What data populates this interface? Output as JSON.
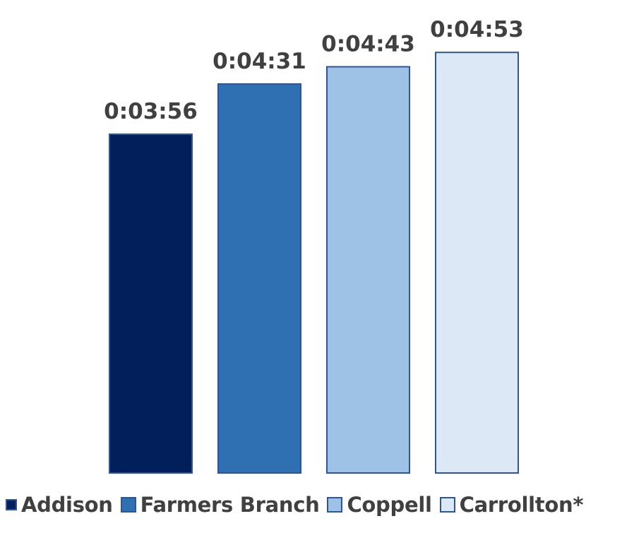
{
  "chart_data": {
    "type": "bar",
    "title": "",
    "xlabel": "",
    "ylabel": "",
    "categories": [
      "Addison",
      "Farmers Branch",
      "Coppell",
      "Carrollton*"
    ],
    "values": [
      236,
      271,
      283,
      293
    ],
    "value_unit": "seconds",
    "data_labels": [
      "0:03:56",
      "0:04:31",
      "0:04:43",
      "0:04:53"
    ],
    "ylim": [
      0,
      300
    ],
    "grid": false,
    "legend_placement": "bottom",
    "colors": [
      "#031f5b",
      "#2e70b2",
      "#9dc2e6",
      "#dce8f5"
    ],
    "bar_border_color": "#2e5597"
  },
  "legend": {
    "items": [
      {
        "label": "Addison",
        "color": "#031f5b"
      },
      {
        "label": "Farmers Branch",
        "color": "#2e70b2"
      },
      {
        "label": "Coppell",
        "color": "#9dc2e6"
      },
      {
        "label": "Carrollton*",
        "color": "#dce8f5"
      }
    ]
  }
}
